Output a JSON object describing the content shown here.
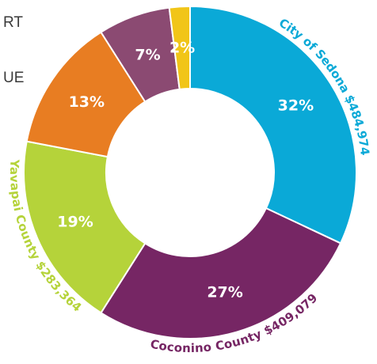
{
  "fragments": {
    "line1": "RT",
    "line2": "UE"
  },
  "chart_data": {
    "type": "pie",
    "donut": true,
    "slices": [
      {
        "key": "sedona",
        "label": "City of Sedona",
        "pct": 32,
        "pct_label": "32%",
        "amount": "$484,974",
        "color": "#0aa9d7"
      },
      {
        "key": "coconino",
        "label": "Coconino County",
        "pct": 27,
        "pct_label": "27%",
        "amount": "$409,079",
        "color": "#762664"
      },
      {
        "key": "yavapai",
        "label": "Yavapai County",
        "pct": 19,
        "pct_label": "19%",
        "amount": "$283,364",
        "color": "#b5d33a"
      },
      {
        "key": "orange",
        "label": "",
        "pct": 13,
        "pct_label": "13%",
        "amount": "",
        "color": "#e87d22"
      },
      {
        "key": "plum",
        "label": "",
        "pct": 7,
        "pct_label": "7%",
        "amount": "",
        "color": "#8b4a72"
      },
      {
        "key": "yellow",
        "label": "",
        "pct": 2,
        "pct_label": "2%",
        "amount": "",
        "color": "#f1c518"
      }
    ]
  }
}
